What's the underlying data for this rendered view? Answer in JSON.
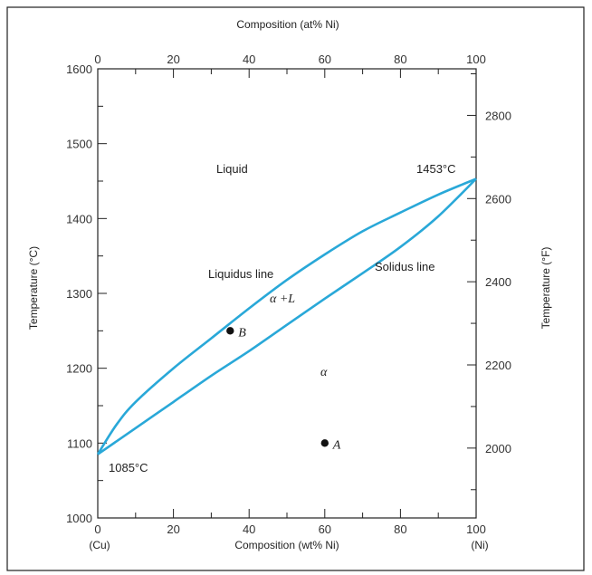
{
  "chart_data": {
    "type": "line",
    "x_bottom_label": "Composition (wt% Ni)",
    "x_top_label": "Composition (at% Ni)",
    "y_left_label": "Temperature (°C)",
    "y_right_label": "Temperature (°F)",
    "x_bottom_end_labels": [
      "(Cu)",
      "(Ni)"
    ],
    "xlim": [
      0,
      100
    ],
    "ylim": [
      1000,
      1600
    ],
    "x_ticks": [
      "0",
      "20",
      "40",
      "60",
      "80",
      "100"
    ],
    "x_top_ticks": [
      "0",
      "20",
      "40",
      "60",
      "80",
      "100"
    ],
    "y_ticks": [
      "1000",
      "1100",
      "1200",
      "1300",
      "1400",
      "1500",
      "1600"
    ],
    "y_right_ticks": [
      "2000",
      "2200",
      "2400",
      "2600",
      "2800"
    ],
    "series": [
      {
        "name": "Liquidus line",
        "color": "#29a8d8",
        "x": [
          0,
          5,
          10,
          20,
          30,
          40,
          50,
          60,
          70,
          80,
          90,
          100
        ],
        "y": [
          1085,
          1125,
          1155,
          1200,
          1240,
          1280,
          1318,
          1352,
          1383,
          1408,
          1432,
          1453
        ]
      },
      {
        "name": "Solidus line",
        "color": "#29a8d8",
        "x": [
          0,
          10,
          20,
          30,
          40,
          50,
          60,
          70,
          80,
          90,
          100
        ],
        "y": [
          1085,
          1120,
          1155,
          1190,
          1223,
          1258,
          1293,
          1327,
          1362,
          1403,
          1453
        ]
      }
    ],
    "points": [
      {
        "label": "A",
        "x": 60,
        "y": 1100
      },
      {
        "label": "B",
        "x": 35,
        "y": 1250
      }
    ],
    "annotations": {
      "liquid": "Liquid",
      "alpha_plus_l": "α +L",
      "alpha": "α",
      "liquidus": "Liquidus line",
      "solidus": "Solidus line",
      "t_top": "1453°C",
      "t_bottom": "1085°C"
    }
  }
}
